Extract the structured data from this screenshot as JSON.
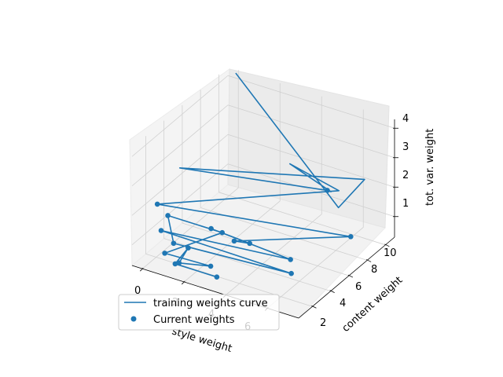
{
  "chart_data": {
    "type": "scatter",
    "projection": "3d",
    "xlabel": "style weight",
    "ylabel": "content weight",
    "zlabel": "tot. var. weight",
    "xticks": [
      "0",
      "2",
      "4",
      "6"
    ],
    "yticks": [
      "2",
      "4",
      "6",
      "8",
      "10"
    ],
    "zticks": [
      "1",
      "2",
      "3",
      "4"
    ],
    "xlim": [
      -0.5,
      7.5
    ],
    "ylim": [
      0.5,
      11
    ],
    "zlim": [
      0.3,
      4.3
    ],
    "grid": true,
    "legend": {
      "location": "lower-left",
      "line_label": "training weights curve",
      "scatter_label": "Current weights"
    },
    "color": "#1f77b4",
    "series": [
      {
        "name": "training weights curve",
        "kind": "line",
        "points": [
          [
            0.4,
            9.8,
            4.6
          ],
          [
            7.0,
            6.0,
            2.5
          ],
          [
            6.5,
            10.0,
            2.3
          ],
          [
            0.3,
            3.9,
            2.9
          ],
          [
            4.8,
            9.8,
            1.6
          ],
          [
            4.8,
            10.2,
            1.45
          ],
          [
            3.0,
            9.8,
            2.1
          ],
          [
            5.4,
            9.7,
            1.75
          ],
          [
            0.1,
            1.9,
            2.15
          ],
          [
            6.8,
            7.8,
            1.0
          ],
          [
            2.3,
            5.3,
            0.5
          ],
          [
            3.0,
            5.4,
            0.55
          ],
          [
            2.2,
            3.0,
            1.5
          ],
          [
            5.4,
            4.4,
            0.8
          ],
          [
            -0.2,
            3.0,
            0.9
          ],
          [
            5.7,
            3.8,
            0.55
          ],
          [
            0.4,
            3.0,
            0.6
          ],
          [
            1.0,
            1.0,
            2.2
          ],
          [
            1.9,
            4.9,
            0.8
          ],
          [
            0.5,
            1.8,
            0.6
          ],
          [
            2.4,
            2.5,
            0.4
          ],
          [
            1.1,
            2.0,
            0.35
          ],
          [
            1.1,
            3.0,
            0.6
          ],
          [
            1.0,
            1.8,
            0.35
          ],
          [
            3.0,
            1.8,
            0.35
          ]
        ]
      },
      {
        "name": "Current weights",
        "kind": "scatter",
        "points": [
          [
            4.8,
            9.8,
            1.6
          ],
          [
            0.1,
            1.9,
            2.15
          ],
          [
            6.8,
            7.8,
            1.0
          ],
          [
            2.3,
            5.3,
            0.5
          ],
          [
            3.0,
            5.4,
            0.55
          ],
          [
            2.2,
            3.0,
            1.5
          ],
          [
            5.4,
            4.4,
            0.8
          ],
          [
            -0.2,
            3.0,
            0.9
          ],
          [
            5.7,
            3.8,
            0.55
          ],
          [
            0.4,
            3.0,
            0.6
          ],
          [
            1.0,
            1.0,
            2.2
          ],
          [
            1.9,
            4.9,
            0.8
          ],
          [
            0.5,
            1.8,
            0.6
          ],
          [
            2.4,
            2.5,
            0.4
          ],
          [
            1.1,
            2.0,
            0.35
          ],
          [
            1.1,
            3.0,
            0.6
          ],
          [
            1.0,
            1.8,
            0.35
          ],
          [
            3.0,
            1.8,
            0.35
          ]
        ]
      }
    ]
  }
}
